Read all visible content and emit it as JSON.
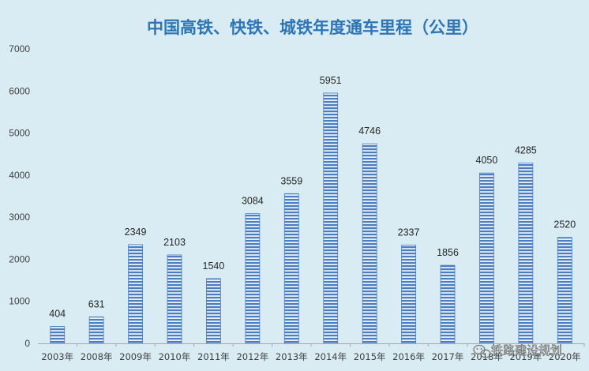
{
  "chart_data": {
    "type": "bar",
    "title": "中国高铁、快铁、城铁年度通车里程（公里）",
    "categories": [
      "2003年",
      "2008年",
      "2009年",
      "2010年",
      "2011年",
      "2012年",
      "2013年",
      "2014年",
      "2015年",
      "2016年",
      "2017年",
      "2018年",
      "2019年",
      "2020年"
    ],
    "values": [
      404,
      631,
      2349,
      2103,
      1540,
      3084,
      3559,
      5951,
      4746,
      2337,
      1856,
      4050,
      4285,
      2520
    ],
    "data_labels": [
      "404",
      "631",
      "2349",
      "2103",
      "1540",
      "3084",
      "3559",
      "5951",
      "4746",
      "2337",
      "1856",
      "4050",
      "4285",
      "2520"
    ],
    "y_ticks": [
      "0",
      "1000",
      "2000",
      "3000",
      "4000",
      "5000",
      "6000",
      "7000"
    ],
    "ylim": [
      0,
      7000
    ],
    "grid": false,
    "xlabel": "",
    "ylabel": "",
    "colors": {
      "background": "#d9ecf3",
      "bar_fill": "#e8f0fa",
      "bar_stripe": "#4a7ec0",
      "title": "#2e75b6",
      "axis": "#a6a6a6"
    }
  },
  "watermark": {
    "text": "铁路建设规划",
    "icon": "wechat-icon"
  }
}
